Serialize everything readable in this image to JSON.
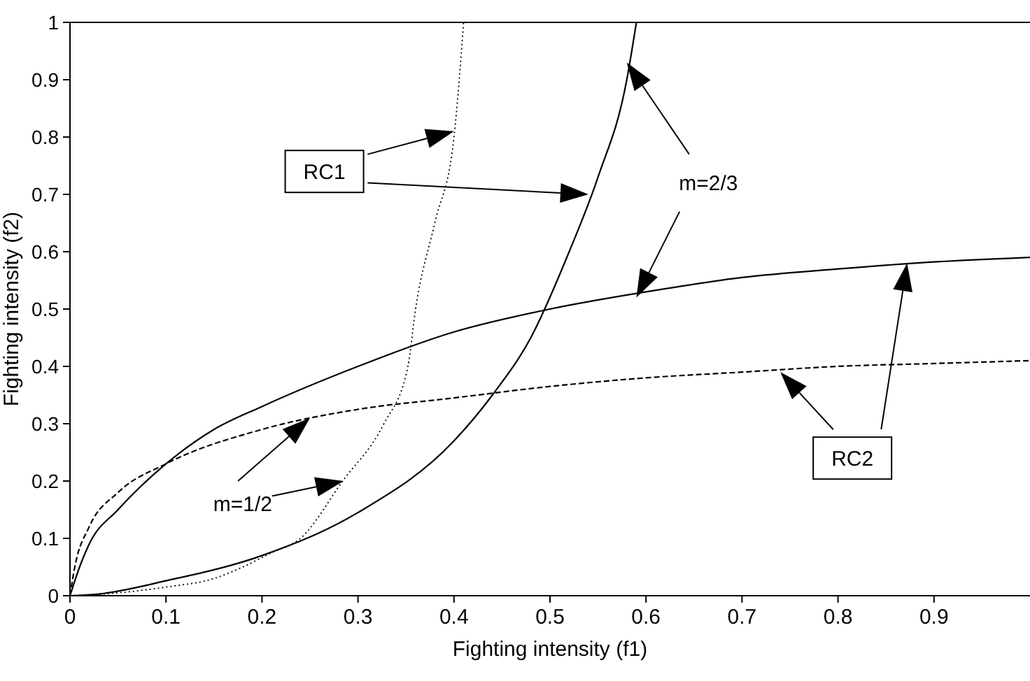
{
  "chart_data": {
    "type": "line",
    "xlabel": "Fighting intensity (f1)",
    "ylabel": "Fighting intensity (f2)",
    "xlim": [
      0,
      1
    ],
    "ylim": [
      0,
      1
    ],
    "xticks": [
      0,
      0.1,
      0.2,
      0.3,
      0.4,
      0.5,
      0.6,
      0.7,
      0.8,
      0.9
    ],
    "yticks": [
      0,
      0.1,
      0.2,
      0.3,
      0.4,
      0.5,
      0.6,
      0.7,
      0.8,
      0.9,
      1
    ],
    "grid": false,
    "marker": "none",
    "annotations": [
      "RC1",
      "m=2/3",
      "m=1/2",
      "RC2"
    ],
    "series": [
      {
        "color": "#000000",
        "line_style": "dotted",
        "x": [
          0,
          0.05,
          0.1,
          0.15,
          0.18,
          0.21,
          0.24,
          0.284,
          0.327,
          0.352,
          0.36,
          0.38,
          0.4,
          0.41
        ],
        "values": [
          0,
          0.005,
          0.015,
          0.03,
          0.05,
          0.075,
          0.1,
          0.2,
          0.3,
          0.4,
          0.5,
          0.65,
          0.8,
          1
        ]
      },
      {
        "color": "#000000",
        "line_style": "solid",
        "x": [
          0,
          0.03,
          0.1,
          0.2,
          0.3,
          0.4,
          0.44,
          0.48,
          0.52,
          0.55,
          0.58,
          0.59
        ],
        "values": [
          0,
          0.003,
          0.026,
          0.07,
          0.145,
          0.27,
          0.35,
          0.45,
          0.6,
          0.73,
          0.9,
          1
        ]
      },
      {
        "color": "#000000",
        "line_style": "solid",
        "x": [
          0,
          0.01,
          0.02,
          0.05,
          0.1,
          0.15,
          0.2,
          0.3,
          0.4,
          0.5,
          0.6,
          0.7,
          0.8,
          0.88,
          1
        ],
        "values": [
          0,
          0.05,
          0.09,
          0.15,
          0.23,
          0.29,
          0.33,
          0.4,
          0.46,
          0.5,
          0.53,
          0.555,
          0.57,
          0.58,
          0.59
        ]
      },
      {
        "color": "#000000",
        "line_style": "dashed",
        "x": [
          0,
          0.005,
          0.02,
          0.05,
          0.1,
          0.2,
          0.3,
          0.4,
          0.5,
          0.6,
          0.7,
          0.8,
          0.9,
          1
        ],
        "values": [
          0,
          0.05,
          0.12,
          0.18,
          0.23,
          0.29,
          0.325,
          0.345,
          0.365,
          0.38,
          0.39,
          0.4,
          0.405,
          0.41
        ]
      }
    ]
  }
}
